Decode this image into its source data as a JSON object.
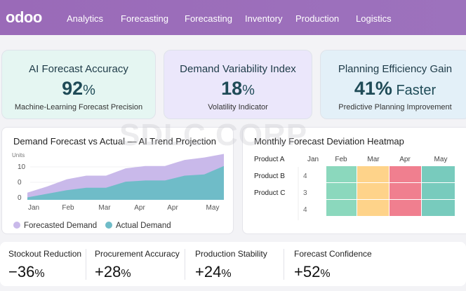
{
  "nav": {
    "logo": "odoo",
    "items": [
      "Analytics",
      "Forecasting",
      "Forecasting",
      "Inventory",
      "Production",
      "Logistics"
    ],
    "color": "#9a6ab8"
  },
  "kpis": [
    {
      "title": "AI Forecast Accuracy",
      "value": "92",
      "unit": "%",
      "subtitle": "Machine-Learning Forecast Precision",
      "bg": "#e5f6f2"
    },
    {
      "title": "Demand Variability Index",
      "value": "18",
      "unit": "%",
      "subtitle": "Volatility Indicator",
      "bg": "#ebe7fb"
    },
    {
      "title": "Planning Efficiency Gain",
      "value": "41%",
      "unit": " Faster",
      "subtitle": "Predictive Planning Improvement",
      "bg": "#e3f0f8"
    }
  ],
  "watermark": "SDLC CORP",
  "chart_data": [
    {
      "type": "area",
      "title": "Demand Forecast vs Actual — AI Trend Projection",
      "ylabel": "Units",
      "y_ticks": [
        "0",
        "0",
        "10"
      ],
      "categories": [
        "Jan",
        "Feb",
        "Mar",
        "Apr",
        "Apr",
        "May"
      ],
      "x": [
        0,
        1,
        2,
        3,
        4,
        5,
        6,
        7,
        8,
        9,
        10
      ],
      "ylim": [
        0,
        20
      ],
      "series": [
        {
          "name": "Forecasted Demand",
          "color": "#c9b9ea",
          "values": [
            3,
            5.5,
            8.5,
            10,
            10,
            13,
            14,
            14,
            16.5,
            17.5,
            19
          ]
        },
        {
          "name": "Actual Demand",
          "color": "#6fbcc8",
          "values": [
            1,
            2.5,
            4,
            5,
            5,
            7.5,
            8,
            8,
            10,
            10.5,
            14
          ]
        }
      ]
    },
    {
      "type": "heatmap",
      "title": "Monthly Forecast Deviation Heatmap",
      "row_labels": [
        "Product A",
        "Product B",
        "Product C"
      ],
      "columns": [
        "Jan",
        "Feb",
        "Mar",
        "Apr",
        "May"
      ],
      "jan_values": [
        "4",
        "3",
        "4"
      ],
      "column_colors": [
        "#8bd8bd",
        "#fed38a",
        "#f07f8f",
        "#78cbbd"
      ]
    }
  ],
  "stats": [
    {
      "label": "Stockout Reduction",
      "value": "−36",
      "unit": "%"
    },
    {
      "label": "Procurement Accuracy",
      "value": "+28",
      "unit": "%"
    },
    {
      "label": "Production Stability",
      "value": "+24",
      "unit": "%"
    },
    {
      "label": "Forecast Confidence",
      "value": "+52",
      "unit": "%"
    }
  ]
}
